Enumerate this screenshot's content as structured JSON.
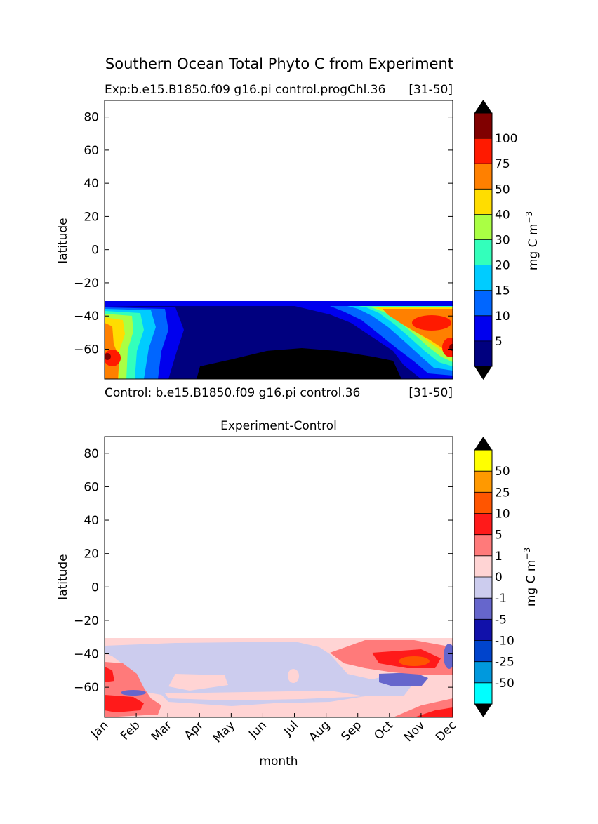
{
  "figure": {
    "suptitle": "Southern Ocean Total Phyto C from Experiment"
  },
  "chart_data": [
    {
      "type": "heatmap",
      "title_left": "Exp:b.e15.B1850.f09 g16.pi control.progChl.36",
      "title_right": "[31-50]",
      "subtitle_below_left": "Control: b.e15.B1850.f09 g16.pi control.36",
      "subtitle_below_right": "[31-50]",
      "xlabel": "",
      "ylabel": "latitude",
      "xlim": [
        0,
        11
      ],
      "ylim": [
        -78,
        90
      ],
      "yticks": [
        -60,
        -40,
        -20,
        0,
        20,
        40,
        60,
        80
      ],
      "data_lat_range": [
        -78,
        -32
      ],
      "colorbar": {
        "label": "mg C m",
        "label_exponent": "−3",
        "levels": [
          "5",
          "10",
          "15",
          "20",
          "30",
          "40",
          "50",
          "75",
          "100"
        ],
        "colors": [
          "#00007f",
          "#0000ee",
          "#0066ff",
          "#00ccff",
          "#33ffbb",
          "#aaff44",
          "#ffdd00",
          "#ff8000",
          "#ff1a00",
          "#800000"
        ],
        "extend_low_color": "#000000",
        "extend_high_color": "#000000"
      }
    },
    {
      "type": "heatmap",
      "title": "Experiment-Control",
      "xlabel": "month",
      "ylabel": "latitude",
      "xlim": [
        0,
        11
      ],
      "ylim": [
        -78,
        90
      ],
      "yticks": [
        -60,
        -40,
        -20,
        0,
        20,
        40,
        60,
        80
      ],
      "x_categories": [
        "Jan",
        "Feb",
        "Mar",
        "Apr",
        "May",
        "Jun",
        "Jul",
        "Aug",
        "Sep",
        "Oct",
        "Nov",
        "Dec"
      ],
      "data_lat_range": [
        -78,
        -32
      ],
      "colorbar": {
        "label": "mg C m",
        "label_exponent": "−3",
        "levels": [
          "-50",
          "-25",
          "-10",
          "-5",
          "-1",
          "0",
          "1",
          "5",
          "10",
          "25",
          "50"
        ],
        "colors": [
          "#00ffff",
          "#0099dd",
          "#0044cc",
          "#1111aa",
          "#6666cc",
          "#ccccee",
          "#ffd4d4",
          "#ff7a7a",
          "#ff1a1a",
          "#ff5500",
          "#ff9900",
          "#ffff00"
        ],
        "extend_low_color": "#000000",
        "extend_high_color": "#000000"
      }
    }
  ]
}
